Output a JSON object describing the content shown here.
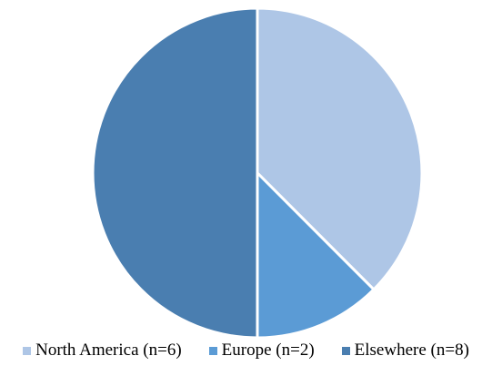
{
  "chart_data": {
    "type": "pie",
    "title": "",
    "slices": [
      {
        "label": "North America (n=6)",
        "value": 6,
        "color": "#aec6e6"
      },
      {
        "label": "Europe (n=2)",
        "value": 2,
        "color": "#5b9bd5"
      },
      {
        "label": "Elsewhere (n=8)",
        "value": 8,
        "color": "#4a7eb0"
      }
    ],
    "start_angle": "12 o'clock",
    "direction": "clockwise",
    "legend_position": "bottom"
  }
}
